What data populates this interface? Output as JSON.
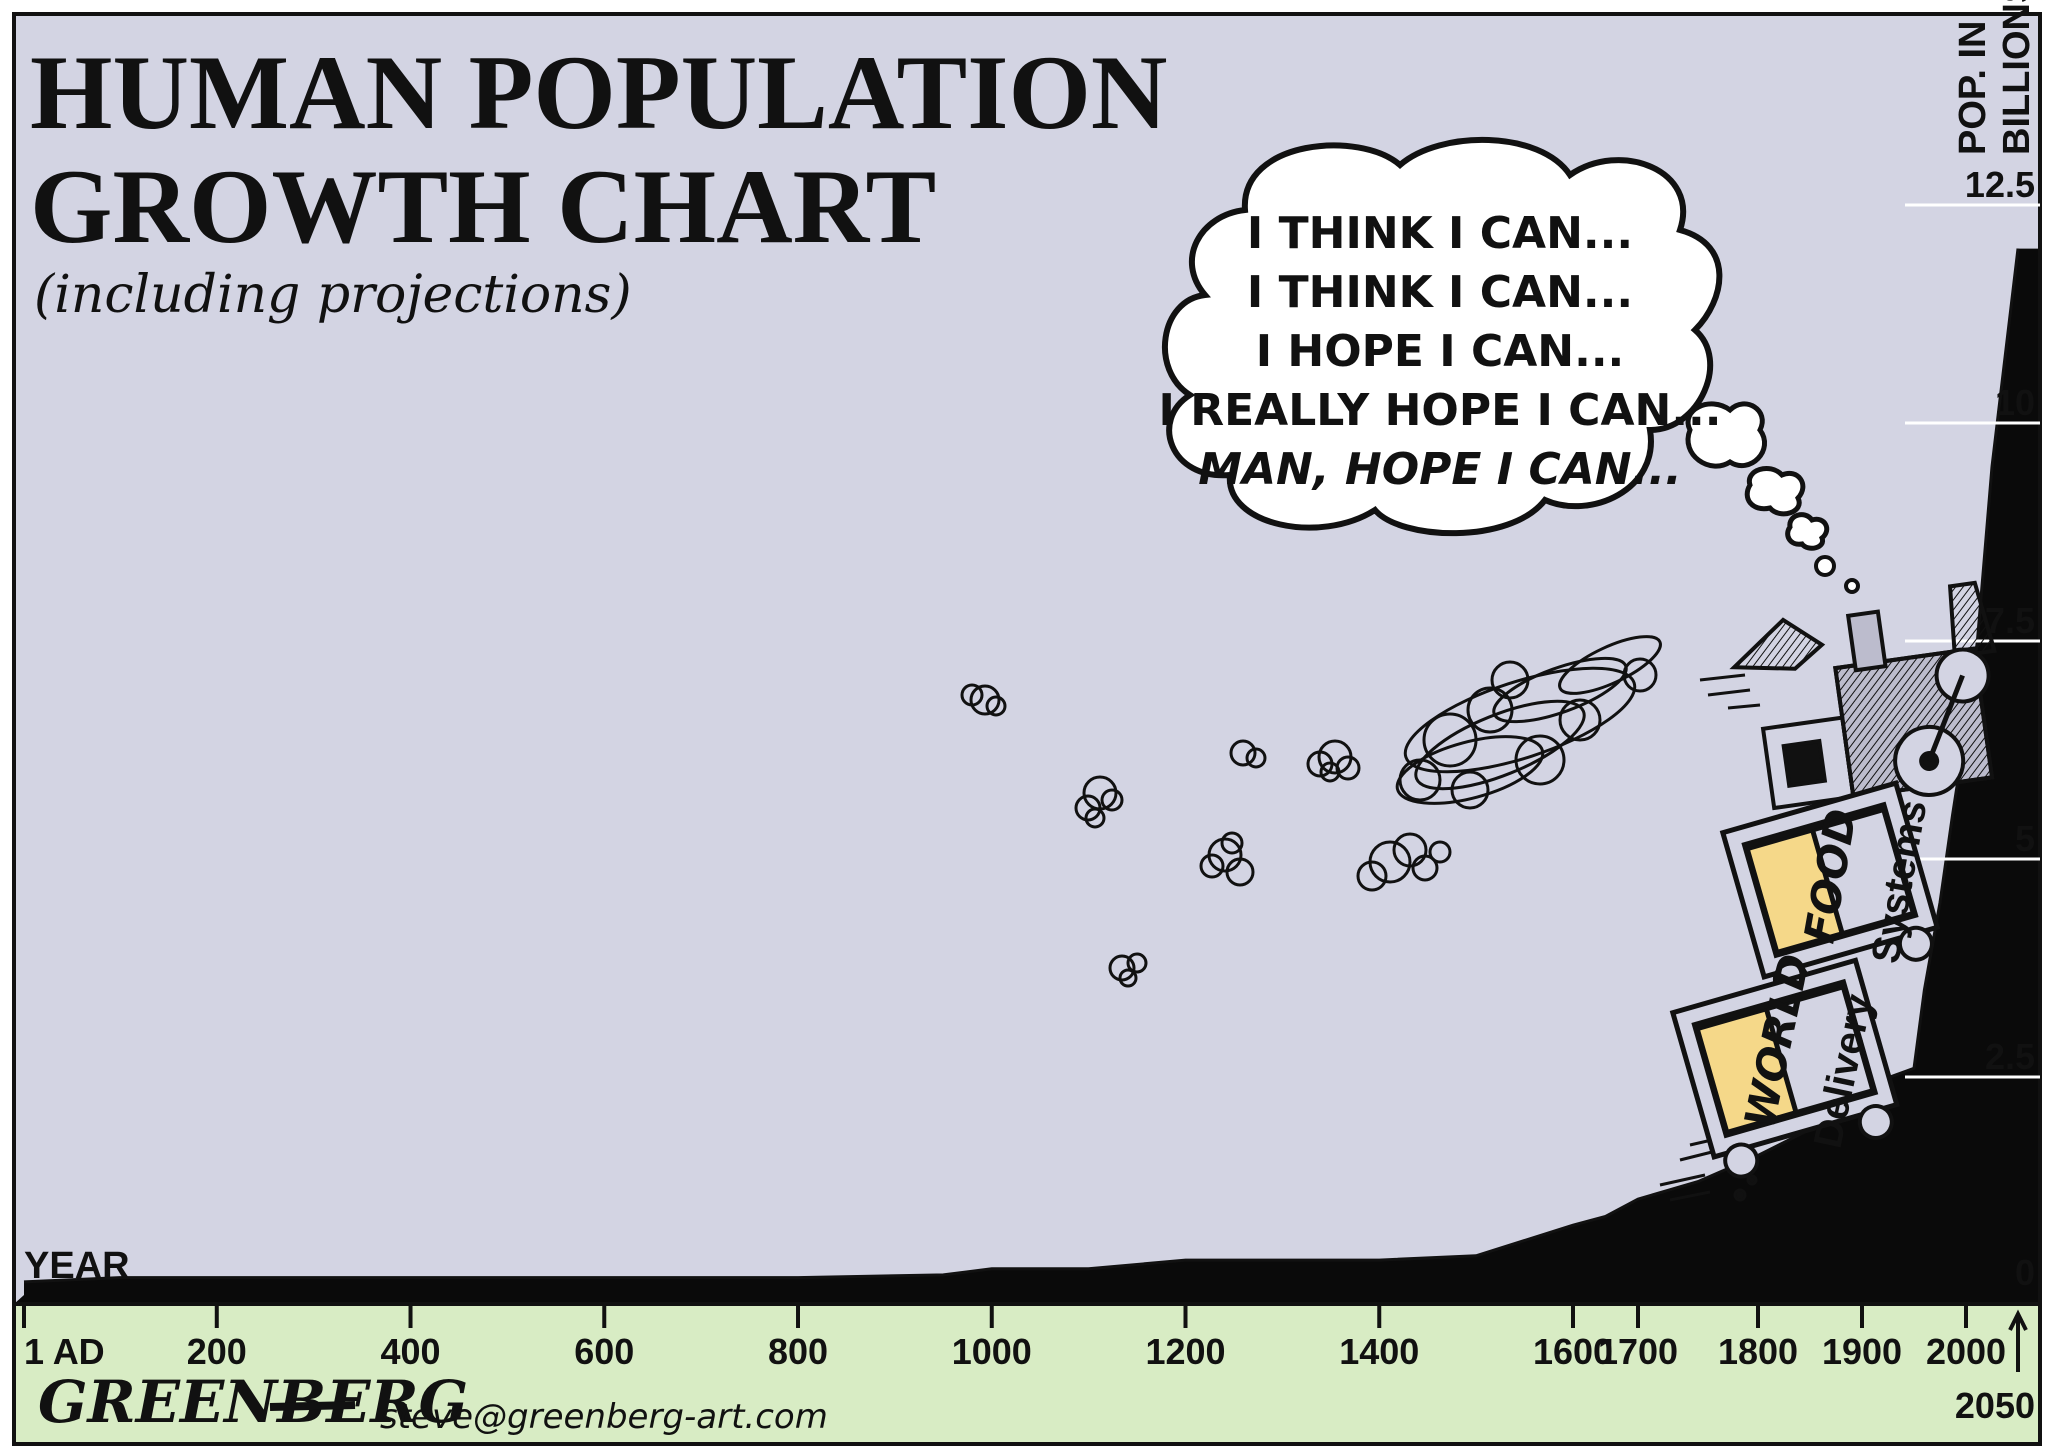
{
  "colors": {
    "background": "#d3d4e3",
    "axis_band": "#d8ecc4",
    "area_fill": "#0a0a0a",
    "car_label": "#f5d889"
  },
  "chart_data": {
    "type": "area",
    "title": "HUMAN POPULATION GROWTH CHART",
    "title_lines": [
      "HUMAN POPULATION",
      "GROWTH CHART"
    ],
    "subtitle": "(including projections)",
    "xlabel": "YEAR",
    "ylabel": "POP. IN BILLIONS",
    "ylabel_lines": [
      "POP. IN",
      "BILLIONS"
    ],
    "ylim": [
      0,
      12.5
    ],
    "y_ticks": [
      {
        "value": 0,
        "label": "0"
      },
      {
        "value": 2.5,
        "label": "2.5"
      },
      {
        "value": 5,
        "label": "5"
      },
      {
        "value": 7.5,
        "label": "7.5"
      },
      {
        "value": 10,
        "label": "10"
      },
      {
        "value": 12.5,
        "label": "12.5"
      }
    ],
    "x_ticks": [
      {
        "value": 1,
        "label": "1 AD"
      },
      {
        "value": 200,
        "label": "200"
      },
      {
        "value": 400,
        "label": "400"
      },
      {
        "value": 600,
        "label": "600"
      },
      {
        "value": 800,
        "label": "800"
      },
      {
        "value": 1000,
        "label": "1000"
      },
      {
        "value": 1200,
        "label": "1200"
      },
      {
        "value": 1400,
        "label": "1400"
      },
      {
        "value": 1600,
        "label": "1600"
      },
      {
        "value": 1700,
        "label": "1700"
      },
      {
        "value": 1800,
        "label": "1800"
      },
      {
        "value": 1900,
        "label": "1900"
      },
      {
        "value": 2000,
        "label": "2000"
      }
    ],
    "projection_marker": {
      "value": 2050,
      "label": "2050"
    },
    "series": [
      {
        "x": [
          1,
          100,
          200,
          400,
          600,
          800,
          950,
          1000,
          1100,
          1200,
          1300,
          1400,
          1500,
          1600,
          1650,
          1700,
          1750,
          1800,
          1850,
          1900,
          1927,
          1950,
          1960,
          1975,
          1987,
          2000,
          2011,
          2025,
          2050
        ],
        "values": [
          0.15,
          0.2,
          0.2,
          0.2,
          0.2,
          0.2,
          0.23,
          0.3,
          0.3,
          0.4,
          0.4,
          0.4,
          0.45,
          0.8,
          0.9,
          1.1,
          1.3,
          1.6,
          1.9,
          2.3,
          2.5,
          2.6,
          3.5,
          4.5,
          5.5,
          6.5,
          7.5,
          9.5,
          12.0
        ]
      }
    ]
  },
  "thought_bubble": {
    "lines": [
      "I THINK I CAN...",
      "I THINK I CAN...",
      "I HOPE I CAN...",
      "I REALLY HOPE I CAN...",
      "MAN, HOPE I CAN..."
    ]
  },
  "train": {
    "car1": {
      "big": "FOOD",
      "small": "Systems"
    },
    "car2": {
      "big": "WORLD",
      "small": "Delivery"
    }
  },
  "credits": {
    "signature": "GREENBERG",
    "email": "steve@greenberg-art.com"
  }
}
